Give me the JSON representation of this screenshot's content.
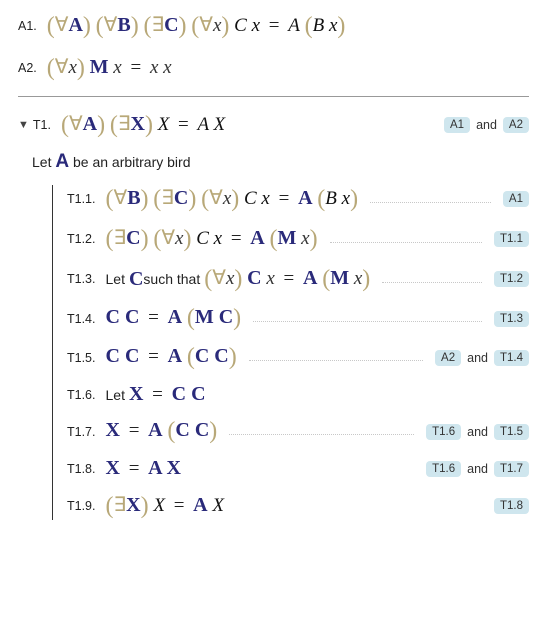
{
  "axioms": {
    "a1": {
      "label": "A1.",
      "formula_html": "<span class='paren'>(</span><span class='quant'>∀</span><span class='boldvar'>A</span><span class='paren'>)</span> <span class='paren'>(</span><span class='quant'>∀</span><span class='boldvar'>B</span><span class='paren'>)</span> <span class='paren'>(</span><span class='quant'>∃</span><span class='boldvar'>C</span><span class='paren'>)</span> <span class='paren'>(</span><span class='quant'>∀</span><span class='var'>x</span><span class='paren'>)</span> <span class='litA'>C x</span> <span class='eq'>=</span> <span class='litA'>A</span> <span class='paren'>(</span><span class='litA'>B x</span><span class='paren'>)</span>"
    },
    "a2": {
      "label": "A2.",
      "formula_html": "<span class='paren'>(</span><span class='quant'>∀</span><span class='var'>x</span><span class='paren'>)</span> <span class='boldvar'>M</span> <span class='var'>x</span> <span class='eq'>=</span> <span class='var'>x x</span>"
    }
  },
  "theorem": {
    "label": "T1.",
    "triangle": "▼",
    "formula_html": "<span class='paren'>(</span><span class='quant'>∀</span><span class='boldvar'>A</span><span class='paren'>)</span> <span class='paren'>(</span><span class='quant'>∃</span><span class='boldvar'>X</span><span class='paren'>)</span> <span class='litA'>X</span> <span class='eq'>=</span> <span class='litA'>A X</span>",
    "refs": [
      "A1",
      "A2"
    ],
    "and": "and"
  },
  "intro": {
    "prefix": "Let ",
    "var_html": "<span class='boldvar'>A</span>",
    "suffix": " be an arbitrary bird"
  },
  "steps": [
    {
      "label": "T1.1.",
      "formula_html": "<span class='paren'>(</span><span class='quant'>∀</span><span class='boldvar'>B</span><span class='paren'>)</span> <span class='paren'>(</span><span class='quant'>∃</span><span class='boldvar'>C</span><span class='paren'>)</span> <span class='paren'>(</span><span class='quant'>∀</span><span class='var'>x</span><span class='paren'>)</span> <span class='litA'>C x</span> <span class='eq'>=</span> <span class='boldvar'>A</span> <span class='paren'>(</span><span class='litA'>B x</span><span class='paren'>)</span>",
      "refs": [
        "A1"
      ],
      "dots": true
    },
    {
      "label": "T1.2.",
      "formula_html": "<span class='paren'>(</span><span class='quant'>∃</span><span class='boldvar'>C</span><span class='paren'>)</span> <span class='paren'>(</span><span class='quant'>∀</span><span class='var'>x</span><span class='paren'>)</span> <span class='litA'>C x</span> <span class='eq'>=</span> <span class='boldvar'>A</span> <span class='paren'>(</span><span class='boldvar'>M</span> <span class='var'>x</span><span class='paren'>)</span>",
      "refs": [
        "T1.1"
      ],
      "dots": true
    },
    {
      "label": "T1.3.",
      "text_prefix": "Let ",
      "text_var_html": "<span class='boldvar'>C</span>",
      "text_mid": " such that ",
      "formula_html": "<span class='paren'>(</span><span class='quant'>∀</span><span class='var'>x</span><span class='paren'>)</span> <span class='boldvar'>C</span> <span class='var'>x</span> <span class='eq'>=</span> <span class='boldvar'>A</span> <span class='paren'>(</span><span class='boldvar'>M</span> <span class='var'>x</span><span class='paren'>)</span>",
      "refs": [
        "T1.2"
      ],
      "dots": true
    },
    {
      "label": "T1.4.",
      "formula_html": "<span class='boldvar'>C C</span> <span class='eq'>=</span> <span class='boldvar'>A</span> <span class='paren'>(</span><span class='boldvar'>M C</span><span class='paren'>)</span>",
      "refs": [
        "T1.3"
      ],
      "dots": true
    },
    {
      "label": "T1.5.",
      "formula_html": "<span class='boldvar'>C C</span> <span class='eq'>=</span> <span class='boldvar'>A</span> <span class='paren'>(</span><span class='boldvar'>C C</span><span class='paren'>)</span>",
      "refs": [
        "A2",
        "T1.4"
      ],
      "dots": true
    },
    {
      "label": "T1.6.",
      "text_prefix": "Let ",
      "formula_html": "<span class='boldvar'>X</span> <span class='eq'>=</span> <span class='boldvar'>C C</span>",
      "refs": [],
      "dots": false
    },
    {
      "label": "T1.7.",
      "formula_html": "<span class='boldvar'>X</span> <span class='eq'>=</span> <span class='boldvar'>A</span> <span class='paren'>(</span><span class='boldvar'>C C</span><span class='paren'>)</span>",
      "refs": [
        "T1.6",
        "T1.5"
      ],
      "dots": true
    },
    {
      "label": "T1.8.",
      "formula_html": "<span class='boldvar'>X</span> <span class='eq'>=</span> <span class='boldvar'>A X</span>",
      "refs": [
        "T1.6",
        "T1.7"
      ],
      "dots": false
    },
    {
      "label": "T1.9.",
      "formula_html": "<span class='paren'>(</span><span class='quant'>∃</span><span class='boldvar'>X</span><span class='paren'>)</span> <span class='litA'>X</span> <span class='eq'>=</span> <span class='boldvar'>A</span> <span class='litA'>X</span>",
      "refs": [
        "T1.8"
      ],
      "dots": false
    }
  ],
  "colors": {
    "paren": "#b8a878",
    "boldvar": "#2a2a7a",
    "ref_bg": "#cfe6ee",
    "divider": "#999999",
    "dots": "#c8c8c8",
    "proof_border": "#333333"
  }
}
